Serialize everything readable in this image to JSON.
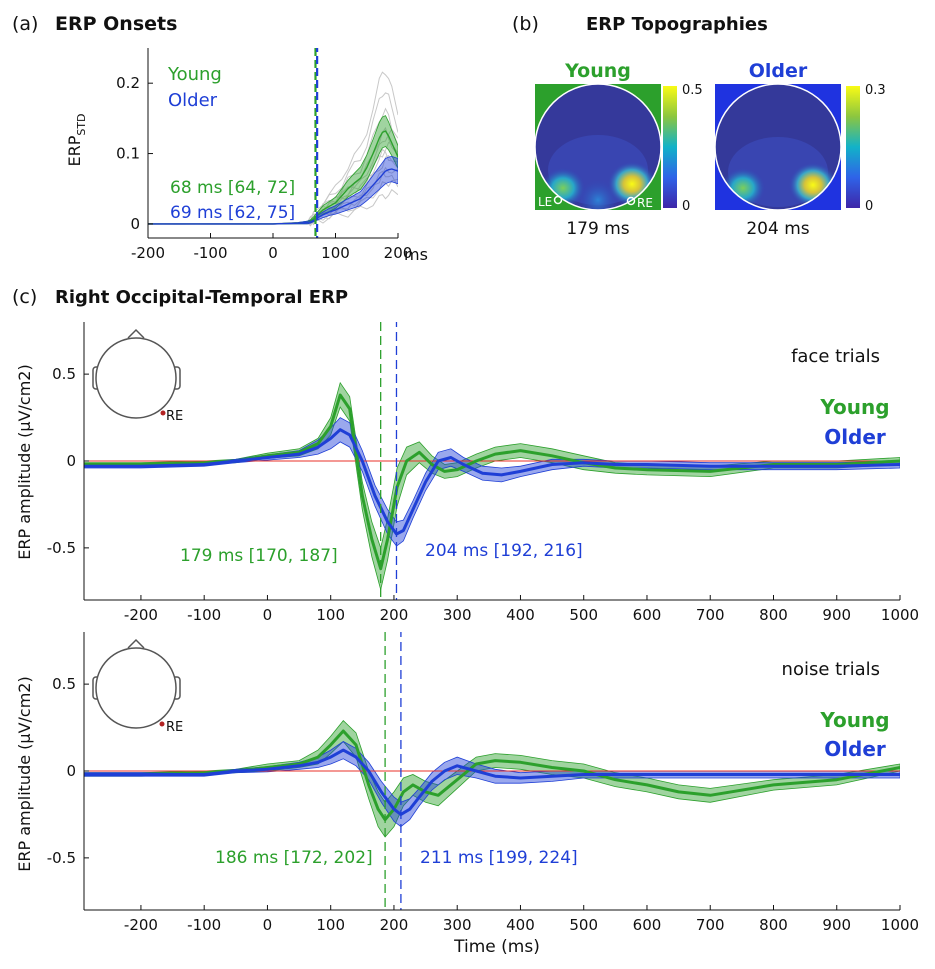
{
  "colors": {
    "young": "#2ca02c",
    "older": "#1f3fd6",
    "zero": "#e8302a",
    "trial": "#c8c8c8",
    "electrode": "#b22222"
  },
  "panel_a": {
    "letter": "(a)",
    "title": "ERP Onsets",
    "ylabel_main": "ERP",
    "ylabel_sub": "STD",
    "xunit": "ms",
    "legend": {
      "young": "Young",
      "older": "Older"
    },
    "onset_young": "68 ms [64, 72]",
    "onset_older": "69 ms [62, 75]"
  },
  "panel_b": {
    "letter": "(b)",
    "title": "ERP Topographies",
    "maps": [
      {
        "group": "Young",
        "time": "179 ms",
        "cmax": "0.5",
        "cmin": "0",
        "le": "LE",
        "re": "RE"
      },
      {
        "group": "Older",
        "time": "204 ms",
        "cmax": "0.3",
        "cmin": "0"
      }
    ]
  },
  "panel_c": {
    "letter": "(c)",
    "title": "Right Occipital-Temporal ERP",
    "ylabel": "ERP amplitude (μV/cm2)",
    "xlabel": "Time (ms)",
    "electrode": "RE",
    "face": {
      "trial_label": "face trials",
      "legend_young": "Young",
      "legend_older": "Older",
      "peak_young": "179 ms [170, 187]",
      "peak_older": "204 ms [192, 216]"
    },
    "noise": {
      "trial_label": "noise trials",
      "legend_young": "Young",
      "legend_older": "Older",
      "peak_young": "186 ms [172, 202]",
      "peak_older": "211 ms [199, 224]"
    }
  },
  "chart_data": [
    {
      "type": "line",
      "id": "erp-onsets",
      "title": "ERP Onsets",
      "xlabel": "ms",
      "ylabel": "ERP STD",
      "xlim": [
        -200,
        200
      ],
      "ylim": [
        -0.02,
        0.25
      ],
      "xticks": [
        -200,
        -100,
        0,
        100,
        200
      ],
      "yticks": [
        0,
        0.1,
        0.2
      ],
      "onsets": {
        "young": 68,
        "older": 69
      },
      "series": [
        {
          "name": "Young",
          "x": [
            -200,
            -150,
            -100,
            -50,
            0,
            40,
            55,
            60,
            65,
            70,
            80,
            90,
            100,
            110,
            120,
            130,
            140,
            150,
            160,
            170,
            175,
            180,
            185,
            190,
            200
          ],
          "y": [
            0,
            0,
            0,
            0,
            0,
            0.001,
            0.002,
            0.004,
            0.007,
            0.012,
            0.02,
            0.025,
            0.03,
            0.04,
            0.05,
            0.058,
            0.065,
            0.08,
            0.1,
            0.122,
            0.13,
            0.132,
            0.125,
            0.115,
            0.095
          ],
          "band": [
            0,
            0,
            0,
            0,
            0,
            0.001,
            0.002,
            0.002,
            0.003,
            0.004,
            0.006,
            0.007,
            0.008,
            0.01,
            0.012,
            0.014,
            0.016,
            0.018,
            0.02,
            0.022,
            0.022,
            0.022,
            0.02,
            0.018,
            0.016
          ]
        },
        {
          "name": "Older",
          "x": [
            -200,
            -150,
            -100,
            -50,
            0,
            40,
            55,
            60,
            65,
            70,
            80,
            90,
            100,
            110,
            120,
            130,
            140,
            150,
            160,
            170,
            175,
            180,
            185,
            190,
            200
          ],
          "y": [
            0,
            0,
            0,
            0,
            0,
            0.001,
            0.002,
            0.003,
            0.005,
            0.008,
            0.013,
            0.017,
            0.02,
            0.024,
            0.028,
            0.032,
            0.036,
            0.045,
            0.055,
            0.065,
            0.07,
            0.075,
            0.077,
            0.078,
            0.075
          ],
          "band": [
            0,
            0,
            0,
            0,
            0,
            0.001,
            0.002,
            0.002,
            0.002,
            0.003,
            0.004,
            0.005,
            0.006,
            0.007,
            0.008,
            0.009,
            0.01,
            0.012,
            0.014,
            0.016,
            0.017,
            0.018,
            0.018,
            0.018,
            0.018
          ]
        }
      ]
    },
    {
      "type": "line",
      "id": "erp-face",
      "title": "face trials",
      "xlabel": "Time (ms)",
      "ylabel": "ERP amplitude (μV/cm2)",
      "xlim": [
        -290,
        1000
      ],
      "ylim": [
        -0.8,
        0.8
      ],
      "xticks": [
        -200,
        -100,
        0,
        100,
        200,
        300,
        400,
        500,
        600,
        700,
        800,
        900,
        1000
      ],
      "yticks": [
        -0.5,
        0,
        0.5
      ],
      "peaks": {
        "young": 179,
        "older": 204
      },
      "series": [
        {
          "name": "Young",
          "x": [
            -290,
            -200,
            -100,
            -50,
            0,
            50,
            80,
            100,
            115,
            130,
            150,
            165,
            179,
            190,
            205,
            220,
            240,
            260,
            280,
            300,
            330,
            360,
            400,
            450,
            500,
            550,
            600,
            700,
            800,
            900,
            1000
          ],
          "y": [
            -0.02,
            -0.02,
            -0.01,
            0.0,
            0.03,
            0.05,
            0.1,
            0.2,
            0.38,
            0.3,
            -0.2,
            -0.45,
            -0.62,
            -0.45,
            -0.15,
            0.0,
            0.05,
            -0.02,
            -0.06,
            -0.05,
            0.0,
            0.04,
            0.06,
            0.03,
            -0.01,
            -0.04,
            -0.05,
            -0.06,
            -0.02,
            -0.02,
            0.0
          ],
          "band": [
            0.01,
            0.01,
            0.01,
            0.01,
            0.015,
            0.02,
            0.03,
            0.05,
            0.07,
            0.07,
            0.08,
            0.1,
            0.12,
            0.12,
            0.11,
            0.08,
            0.06,
            0.05,
            0.04,
            0.04,
            0.04,
            0.04,
            0.04,
            0.04,
            0.04,
            0.03,
            0.03,
            0.03,
            0.02,
            0.02,
            0.02
          ]
        },
        {
          "name": "Older",
          "x": [
            -290,
            -200,
            -100,
            -50,
            0,
            50,
            80,
            100,
            115,
            130,
            150,
            170,
            190,
            204,
            215,
            230,
            250,
            270,
            290,
            310,
            340,
            370,
            400,
            450,
            500,
            550,
            600,
            700,
            800,
            900,
            1000
          ],
          "y": [
            -0.03,
            -0.03,
            -0.02,
            0.0,
            0.02,
            0.04,
            0.08,
            0.13,
            0.18,
            0.15,
            0.0,
            -0.2,
            -0.35,
            -0.42,
            -0.4,
            -0.28,
            -0.12,
            0.0,
            0.02,
            -0.02,
            -0.07,
            -0.08,
            -0.06,
            -0.02,
            -0.01,
            -0.02,
            -0.02,
            -0.03,
            -0.03,
            -0.03,
            -0.02
          ],
          "band": [
            0.01,
            0.01,
            0.01,
            0.01,
            0.015,
            0.02,
            0.04,
            0.06,
            0.07,
            0.07,
            0.06,
            0.06,
            0.07,
            0.07,
            0.06,
            0.05,
            0.05,
            0.05,
            0.05,
            0.04,
            0.04,
            0.04,
            0.03,
            0.03,
            0.02,
            0.02,
            0.02,
            0.02,
            0.02,
            0.02,
            0.02
          ]
        }
      ]
    },
    {
      "type": "line",
      "id": "erp-noise",
      "title": "noise trials",
      "xlabel": "Time (ms)",
      "ylabel": "ERP amplitude (μV/cm2)",
      "xlim": [
        -290,
        1000
      ],
      "ylim": [
        -0.8,
        0.8
      ],
      "xticks": [
        -200,
        -100,
        0,
        100,
        200,
        300,
        400,
        500,
        600,
        700,
        800,
        900,
        1000
      ],
      "yticks": [
        -0.5,
        0,
        0.5
      ],
      "peaks": {
        "young": 186,
        "older": 211
      },
      "series": [
        {
          "name": "Young",
          "x": [
            -290,
            -200,
            -100,
            -50,
            0,
            50,
            80,
            100,
            120,
            140,
            160,
            175,
            186,
            200,
            215,
            230,
            250,
            270,
            300,
            330,
            360,
            400,
            450,
            500,
            550,
            600,
            650,
            700,
            800,
            900,
            1000
          ],
          "y": [
            -0.02,
            -0.02,
            -0.01,
            0.0,
            0.02,
            0.04,
            0.08,
            0.15,
            0.23,
            0.15,
            -0.08,
            -0.22,
            -0.28,
            -0.22,
            -0.12,
            -0.08,
            -0.12,
            -0.14,
            -0.05,
            0.04,
            0.06,
            0.05,
            0.02,
            0.0,
            -0.05,
            -0.08,
            -0.12,
            -0.14,
            -0.08,
            -0.05,
            0.02
          ],
          "band": [
            0.01,
            0.01,
            0.01,
            0.01,
            0.02,
            0.02,
            0.04,
            0.05,
            0.06,
            0.07,
            0.08,
            0.1,
            0.1,
            0.1,
            0.08,
            0.06,
            0.06,
            0.06,
            0.05,
            0.04,
            0.04,
            0.04,
            0.04,
            0.04,
            0.04,
            0.04,
            0.04,
            0.04,
            0.03,
            0.03,
            0.02
          ]
        },
        {
          "name": "Older",
          "x": [
            -290,
            -200,
            -100,
            -50,
            0,
            50,
            80,
            100,
            120,
            140,
            160,
            180,
            200,
            211,
            225,
            240,
            260,
            280,
            300,
            330,
            360,
            400,
            450,
            500,
            550,
            600,
            650,
            700,
            800,
            900,
            1000
          ],
          "y": [
            -0.02,
            -0.02,
            -0.02,
            0.0,
            0.01,
            0.03,
            0.05,
            0.08,
            0.12,
            0.08,
            0.0,
            -0.12,
            -0.22,
            -0.25,
            -0.22,
            -0.15,
            -0.06,
            0.0,
            0.03,
            0.0,
            -0.03,
            -0.04,
            -0.03,
            -0.02,
            -0.02,
            -0.02,
            -0.02,
            -0.02,
            -0.02,
            -0.02,
            -0.02
          ],
          "band": [
            0.01,
            0.01,
            0.01,
            0.01,
            0.015,
            0.02,
            0.03,
            0.04,
            0.05,
            0.05,
            0.05,
            0.06,
            0.07,
            0.07,
            0.06,
            0.05,
            0.05,
            0.05,
            0.05,
            0.04,
            0.04,
            0.03,
            0.03,
            0.02,
            0.02,
            0.02,
            0.02,
            0.02,
            0.02,
            0.02,
            0.02
          ]
        }
      ]
    }
  ]
}
